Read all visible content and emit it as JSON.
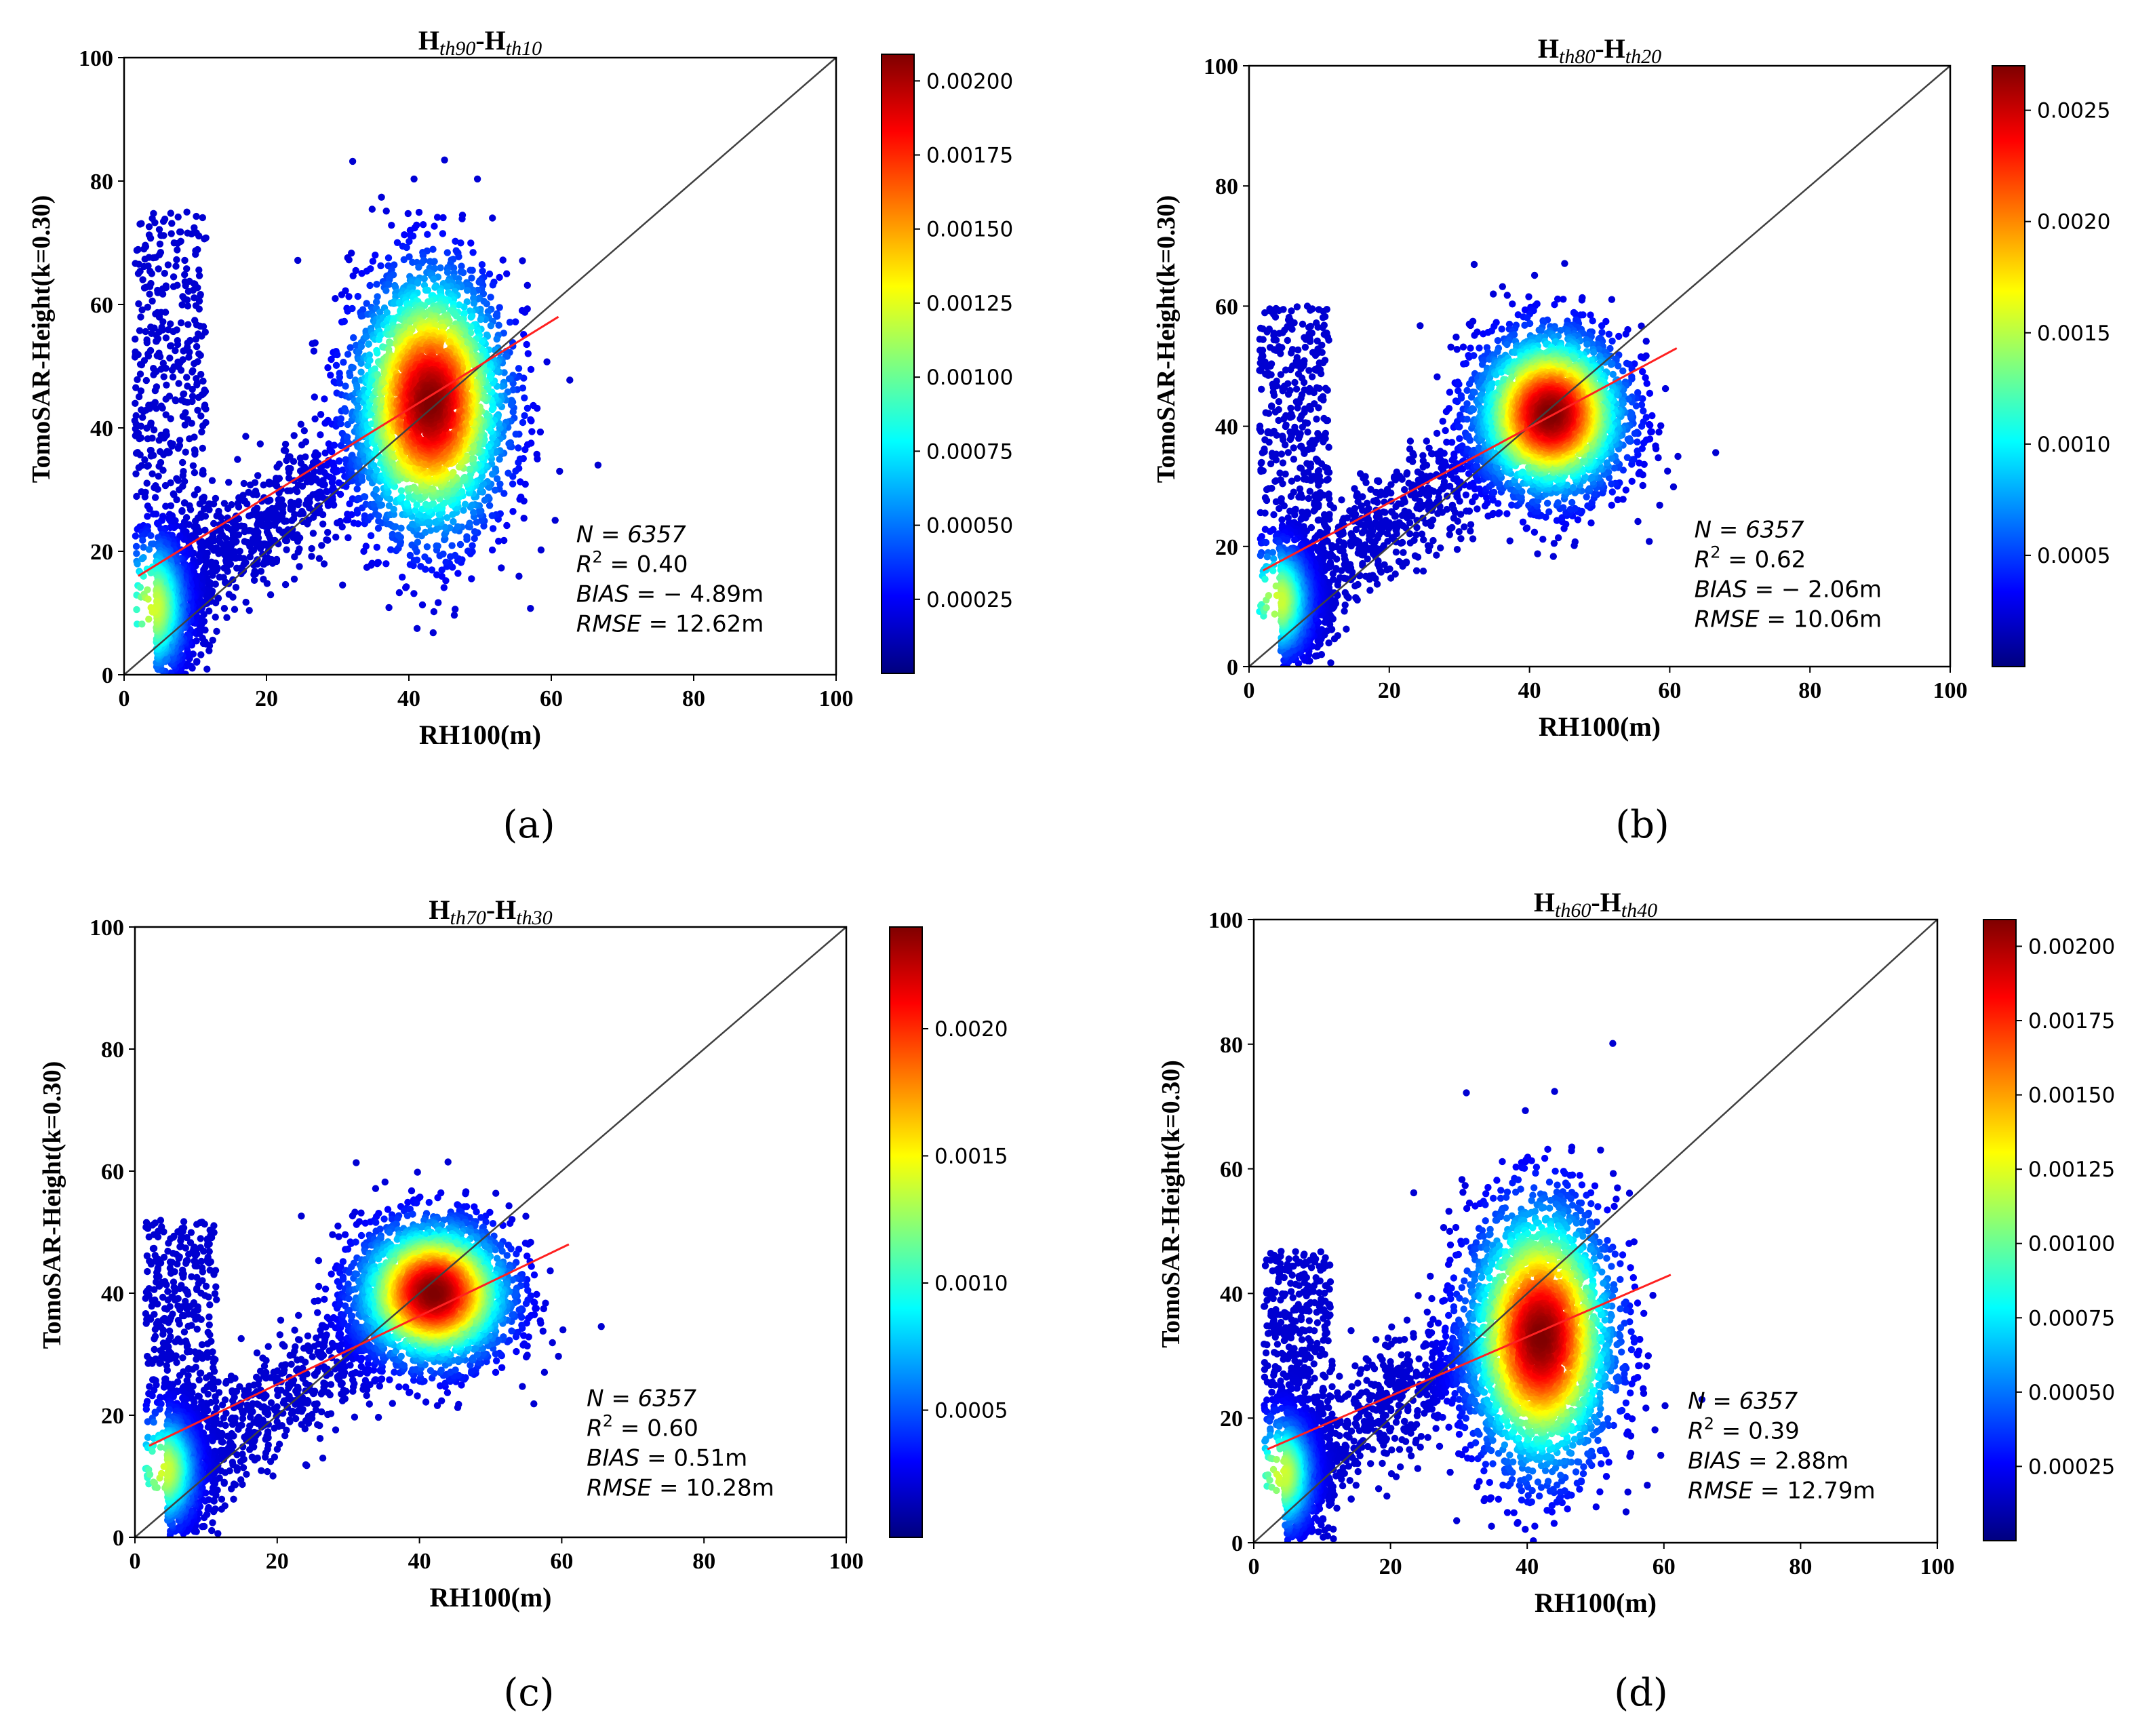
{
  "colorscale": [
    "#00007f",
    "#0000ff",
    "#007fff",
    "#00ffff",
    "#7fff7f",
    "#ffff00",
    "#ff7f00",
    "#ff0000",
    "#7f0000"
  ],
  "line_colors": {
    "identity": "#404040",
    "fit": "#ff2020"
  },
  "chart_data": [
    {
      "type": "scatter",
      "panel_label": "(a)",
      "title_main": "H",
      "title_sub1": "th90",
      "title_sep": "-H",
      "title_sub2": "th10",
      "xlabel": "RH100(m)",
      "ylabel": "TomoSAR-Height(k=0.30)",
      "xlim": [
        0,
        100
      ],
      "ylim": [
        0,
        100
      ],
      "xticks": [
        "0",
        "20",
        "40",
        "60",
        "80",
        "100"
      ],
      "yticks": [
        "0",
        "20",
        "40",
        "60",
        "80",
        "100"
      ],
      "colorbar_range": [
        0,
        0.00209
      ],
      "colorbar_ticks": [
        "0.00025",
        "0.00050",
        "0.00075",
        "0.00100",
        "0.00125",
        "0.00150",
        "0.00175",
        "0.00200"
      ],
      "colorbar_values": [
        0.00025,
        0.0005,
        0.00075,
        0.001,
        0.00125,
        0.0015,
        0.00175,
        0.002
      ],
      "fit_line": {
        "x": [
          2,
          61
        ],
        "y": [
          16,
          58
        ]
      },
      "clusters": [
        {
          "cx": 4,
          "cy": 11,
          "sx": 2.5,
          "sy": 6,
          "n": 900
        },
        {
          "cx": 43,
          "cy": 44,
          "sx": 5.5,
          "sy": 11,
          "n": 3200
        }
      ],
      "stats": {
        "n_label": "N = 6357",
        "r2_label": "R",
        "r2_value": " = 0.40",
        "bias_label": "BIAS",
        "bias_value": " = − 4.89m",
        "rmse_label": "RMSE",
        "rmse_value": " = 12.62m"
      }
    },
    {
      "type": "scatter",
      "panel_label": "(b)",
      "title_main": "H",
      "title_sub1": "th80",
      "title_sep": "-H",
      "title_sub2": "th20",
      "xlabel": "RH100(m)",
      "ylabel": "TomoSAR-Height(k=0.30)",
      "xlim": [
        0,
        100
      ],
      "ylim": [
        0,
        100
      ],
      "xticks": [
        "0",
        "20",
        "40",
        "60",
        "80",
        "100"
      ],
      "yticks": [
        "0",
        "20",
        "40",
        "60",
        "80",
        "100"
      ],
      "colorbar_range": [
        0,
        0.0027
      ],
      "colorbar_ticks": [
        "0.0005",
        "0.0010",
        "0.0015",
        "0.0020",
        "0.0025"
      ],
      "colorbar_values": [
        0.0005,
        0.001,
        0.0015,
        0.002,
        0.0025
      ],
      "fit_line": {
        "x": [
          2,
          61
        ],
        "y": [
          16,
          53
        ]
      },
      "clusters": [
        {
          "cx": 4,
          "cy": 11,
          "sx": 2.5,
          "sy": 5,
          "n": 900
        },
        {
          "cx": 43,
          "cy": 42,
          "sx": 5.5,
          "sy": 7,
          "n": 3200
        }
      ],
      "stats": {
        "n_label": "N = 6357",
        "r2_label": "R",
        "r2_value": " = 0.62",
        "bias_label": "BIAS",
        "bias_value": " = − 2.06m",
        "rmse_label": "RMSE",
        "rmse_value": " = 10.06m"
      }
    },
    {
      "type": "scatter",
      "panel_label": "(c)",
      "title_main": "H",
      "title_sub1": "th70",
      "title_sep": "-H",
      "title_sub2": "th30",
      "xlabel": "RH100(m)",
      "ylabel": "TomoSAR-Height(k=0.30)",
      "xlim": [
        0,
        100
      ],
      "ylim": [
        0,
        100
      ],
      "xticks": [
        "0",
        "20",
        "40",
        "60",
        "80",
        "100"
      ],
      "yticks": [
        "0",
        "20",
        "40",
        "60",
        "80",
        "100"
      ],
      "colorbar_range": [
        0,
        0.0024
      ],
      "colorbar_ticks": [
        "0.0005",
        "0.0010",
        "0.0015",
        "0.0020"
      ],
      "colorbar_values": [
        0.0005,
        0.001,
        0.0015,
        0.002
      ],
      "fit_line": {
        "x": [
          2,
          61
        ],
        "y": [
          15,
          48
        ]
      },
      "clusters": [
        {
          "cx": 4,
          "cy": 11,
          "sx": 2.5,
          "sy": 5,
          "n": 900
        },
        {
          "cx": 42,
          "cy": 40,
          "sx": 5.5,
          "sy": 6,
          "n": 3200
        }
      ],
      "stats": {
        "n_label": "N = 6357",
        "r2_label": "R",
        "r2_value": " = 0.60",
        "bias_label": "BIAS",
        "bias_value": " = 0.51m",
        "rmse_label": "RMSE",
        "rmse_value": " = 10.28m"
      }
    },
    {
      "type": "scatter",
      "panel_label": "(d)",
      "title_main": "H",
      "title_sub1": "th60",
      "title_sep": "-H",
      "title_sub2": "th40",
      "xlabel": "RH100(m)",
      "ylabel": "TomoSAR-Height(k=0.30)",
      "xlim": [
        0,
        100
      ],
      "ylim": [
        0,
        100
      ],
      "xticks": [
        "0",
        "20",
        "40",
        "60",
        "80",
        "100"
      ],
      "yticks": [
        "0",
        "20",
        "40",
        "60",
        "80",
        "100"
      ],
      "colorbar_range": [
        0,
        0.00209
      ],
      "colorbar_ticks": [
        "0.00025",
        "0.00050",
        "0.00075",
        "0.00100",
        "0.00125",
        "0.00150",
        "0.00175",
        "0.00200"
      ],
      "colorbar_values": [
        0.00025,
        0.0005,
        0.00075,
        0.001,
        0.00125,
        0.0015,
        0.00175,
        0.002
      ],
      "fit_line": {
        "x": [
          2,
          61
        ],
        "y": [
          15,
          43
        ]
      },
      "clusters": [
        {
          "cx": 4,
          "cy": 11,
          "sx": 2.5,
          "sy": 5,
          "n": 900
        },
        {
          "cx": 42,
          "cy": 33,
          "sx": 5.5,
          "sy": 11,
          "n": 3200
        }
      ],
      "stats": {
        "n_label": "N = 6357",
        "r2_label": "R",
        "r2_value": " = 0.39",
        "bias_label": "BIAS",
        "bias_value": " = 2.88m",
        "rmse_label": "RMSE",
        "rmse_value": " = 12.79m"
      }
    }
  ]
}
